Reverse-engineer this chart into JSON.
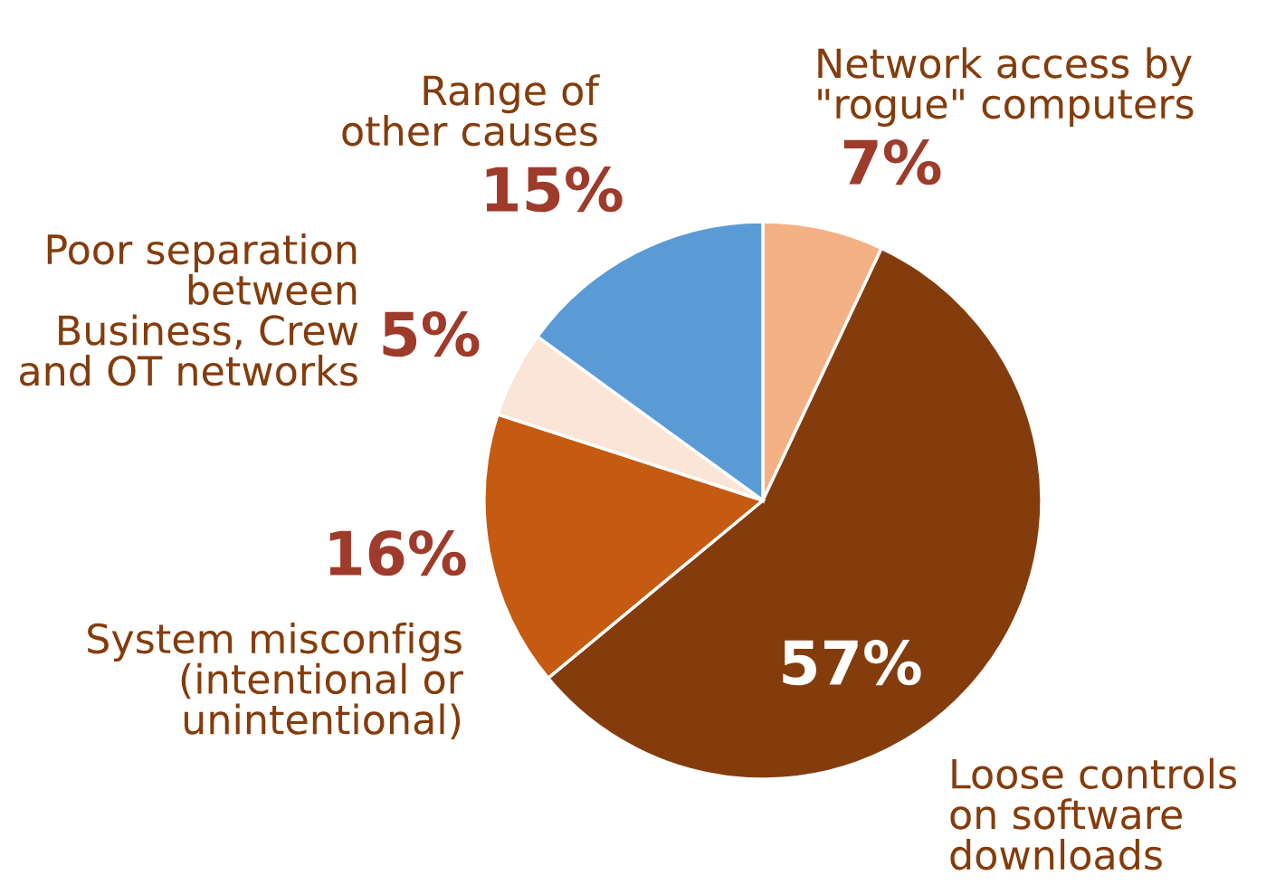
{
  "chart_data": {
    "type": "pie",
    "categories": [
      "Network access by\n\"rogue\" computers",
      "Loose controls\non software\ndownloads",
      "System misconfigs\n(intentional or\nunintentional)",
      "Poor separation\nbetween\nBusiness, Crew\nand OT networks",
      "Range of\nother causes"
    ],
    "values": [
      7,
      57,
      16,
      5,
      15
    ],
    "colors": [
      "#f4b183",
      "#843c0c",
      "#c55a11",
      "#fbe5d6",
      "#5b9bd5"
    ],
    "value_labels": [
      "7%",
      "57%",
      "16%",
      "5%",
      "15%"
    ],
    "legend": false
  }
}
